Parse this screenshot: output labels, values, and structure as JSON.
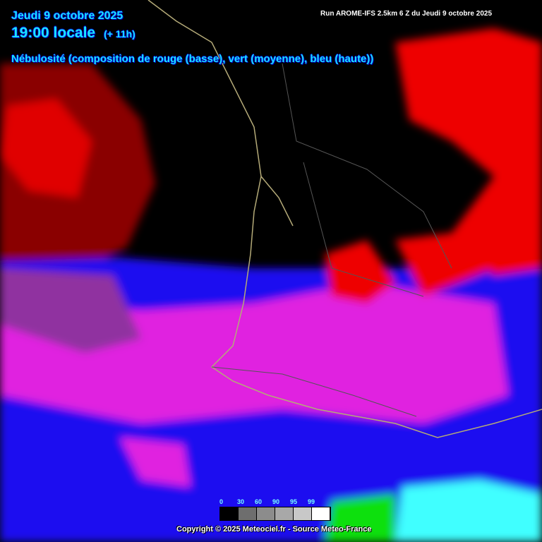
{
  "header": {
    "date": "Jeudi 9 octobre 2025",
    "time": "19:00 locale",
    "lead": "(+ 11h)",
    "parameter": "Nébulosité (composition de rouge (basse), vert (moyenne), bleu (haute))",
    "run": "Run AROME-IFS 2.5km 6 Z du Jeudi 9 octobre 2025"
  },
  "legend": {
    "labels": [
      "0",
      "30",
      "60",
      "90",
      "95",
      "99"
    ],
    "colors": [
      "#000000",
      "#6e6e6e",
      "#8c8c8c",
      "#a8a8a8",
      "#c8c8c8",
      "#ffffff"
    ]
  },
  "copyright": "Copyright © 2025 Meteociel.fr - Source Meteo-France",
  "colors": {
    "low_cloud": "#ff0000",
    "mid_cloud": "#00ff00",
    "high_cloud": "#0000ff",
    "coast": "#b4aa78",
    "borders": "#555555"
  }
}
